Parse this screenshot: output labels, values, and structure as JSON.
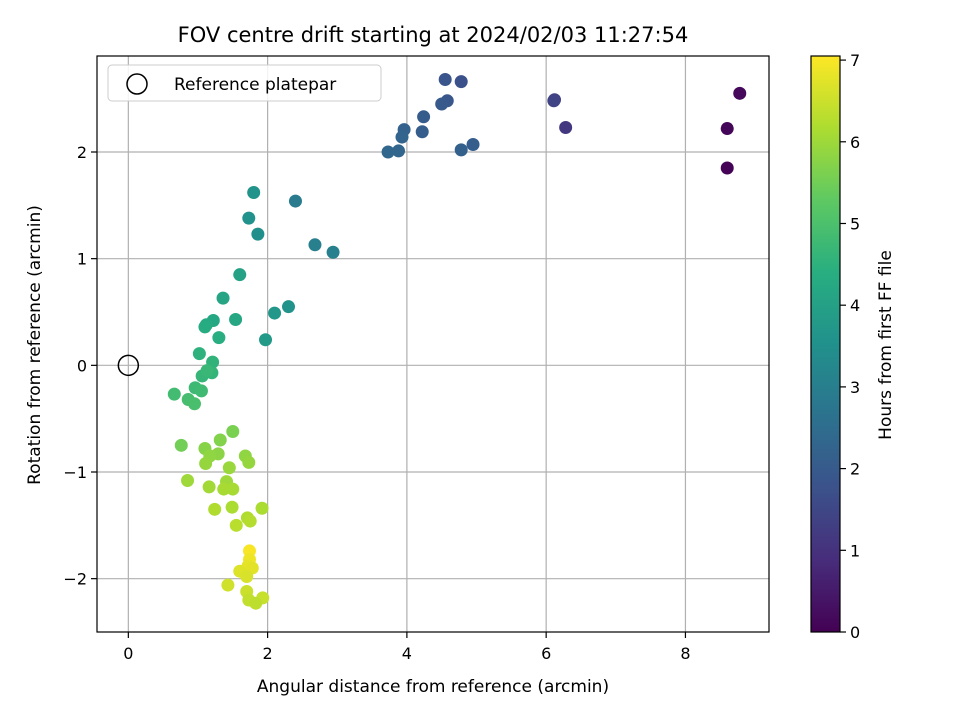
{
  "chart_data": {
    "type": "scatter",
    "title": "FOV centre drift starting at 2024/02/03 11:27:54",
    "xlabel": "Angular distance from reference (arcmin)",
    "ylabel": "Rotation from reference (arcmin)",
    "xlim": [
      -0.45,
      9.2
    ],
    "ylim": [
      -2.5,
      2.9
    ],
    "xticks": [
      0,
      2,
      4,
      6,
      8
    ],
    "yticks": [
      -2,
      -1,
      0,
      1,
      2
    ],
    "xtick_labels": [
      "0",
      "2",
      "4",
      "6",
      "8"
    ],
    "ytick_labels": [
      "−2",
      "−1",
      "0",
      "1",
      "2"
    ],
    "grid": true,
    "legend": {
      "position": "top-left",
      "entries": [
        {
          "label": "Reference platepar",
          "marker": "open-circle"
        }
      ]
    },
    "reference_point": {
      "x": 0,
      "y": 0
    },
    "colorbar": {
      "label": "Hours from first FF file",
      "colormap": "viridis",
      "range": [
        0,
        7.05
      ],
      "ticks": [
        0,
        1,
        2,
        3,
        4,
        5,
        6,
        7
      ],
      "tick_labels": [
        "0",
        "1",
        "2",
        "3",
        "4",
        "5",
        "6",
        "7"
      ]
    },
    "points": [
      {
        "x": 8.6,
        "y": 1.85,
        "c": 0.05
      },
      {
        "x": 8.6,
        "y": 2.22,
        "c": 0.1
      },
      {
        "x": 8.78,
        "y": 2.55,
        "c": 0.15
      },
      {
        "x": 6.28,
        "y": 2.23,
        "c": 1.15
      },
      {
        "x": 6.12,
        "y": 2.49,
        "c": 1.35
      },
      {
        "x": 6.11,
        "y": 2.48,
        "c": 1.4
      },
      {
        "x": 4.78,
        "y": 2.66,
        "c": 1.75
      },
      {
        "x": 4.55,
        "y": 2.68,
        "c": 1.85
      },
      {
        "x": 4.58,
        "y": 2.48,
        "c": 1.9
      },
      {
        "x": 4.5,
        "y": 2.45,
        "c": 1.95
      },
      {
        "x": 4.24,
        "y": 2.33,
        "c": 2.05
      },
      {
        "x": 4.22,
        "y": 2.19,
        "c": 2.1
      },
      {
        "x": 3.96,
        "y": 2.21,
        "c": 2.2
      },
      {
        "x": 3.93,
        "y": 2.14,
        "c": 2.25
      },
      {
        "x": 3.88,
        "y": 2.01,
        "c": 2.3
      },
      {
        "x": 3.73,
        "y": 2.0,
        "c": 2.35
      },
      {
        "x": 4.78,
        "y": 2.02,
        "c": 2.15
      },
      {
        "x": 4.95,
        "y": 2.07,
        "c": 2.1
      },
      {
        "x": 2.4,
        "y": 1.54,
        "c": 2.9
      },
      {
        "x": 2.68,
        "y": 1.13,
        "c": 3.0
      },
      {
        "x": 2.94,
        "y": 1.06,
        "c": 3.05
      },
      {
        "x": 1.8,
        "y": 1.62,
        "c": 3.6
      },
      {
        "x": 1.73,
        "y": 1.38,
        "c": 3.55
      },
      {
        "x": 1.86,
        "y": 1.23,
        "c": 3.5
      },
      {
        "x": 2.3,
        "y": 0.55,
        "c": 3.6
      },
      {
        "x": 2.1,
        "y": 0.49,
        "c": 3.7
      },
      {
        "x": 1.97,
        "y": 0.24,
        "c": 3.8
      },
      {
        "x": 1.6,
        "y": 0.85,
        "c": 4.0
      },
      {
        "x": 1.36,
        "y": 0.63,
        "c": 4.1
      },
      {
        "x": 1.54,
        "y": 0.43,
        "c": 4.15
      },
      {
        "x": 1.22,
        "y": 0.42,
        "c": 4.2
      },
      {
        "x": 1.12,
        "y": 0.38,
        "c": 4.25
      },
      {
        "x": 1.1,
        "y": 0.36,
        "c": 4.3
      },
      {
        "x": 1.3,
        "y": 0.26,
        "c": 4.4
      },
      {
        "x": 1.02,
        "y": 0.11,
        "c": 4.5
      },
      {
        "x": 1.21,
        "y": 0.03,
        "c": 4.55
      },
      {
        "x": 1.2,
        "y": -0.07,
        "c": 4.6
      },
      {
        "x": 1.06,
        "y": -0.1,
        "c": 4.65
      },
      {
        "x": 1.13,
        "y": -0.05,
        "c": 4.7
      },
      {
        "x": 0.96,
        "y": -0.21,
        "c": 4.75
      },
      {
        "x": 1.05,
        "y": -0.24,
        "c": 4.8
      },
      {
        "x": 0.66,
        "y": -0.27,
        "c": 4.85
      },
      {
        "x": 0.86,
        "y": -0.32,
        "c": 4.9
      },
      {
        "x": 0.95,
        "y": -0.36,
        "c": 4.95
      },
      {
        "x": 0.76,
        "y": -0.75,
        "c": 5.5
      },
      {
        "x": 1.5,
        "y": -0.62,
        "c": 5.6
      },
      {
        "x": 1.32,
        "y": -0.7,
        "c": 5.7
      },
      {
        "x": 1.1,
        "y": -0.78,
        "c": 5.75
      },
      {
        "x": 1.29,
        "y": -0.83,
        "c": 5.8
      },
      {
        "x": 1.17,
        "y": -0.85,
        "c": 5.85
      },
      {
        "x": 1.11,
        "y": -0.92,
        "c": 5.9
      },
      {
        "x": 1.68,
        "y": -0.85,
        "c": 5.85
      },
      {
        "x": 1.73,
        "y": -0.91,
        "c": 5.9
      },
      {
        "x": 1.45,
        "y": -0.96,
        "c": 5.95
      },
      {
        "x": 0.85,
        "y": -1.08,
        "c": 6.0
      },
      {
        "x": 1.41,
        "y": -1.09,
        "c": 6.0
      },
      {
        "x": 1.16,
        "y": -1.14,
        "c": 6.05
      },
      {
        "x": 1.37,
        "y": -1.16,
        "c": 6.1
      },
      {
        "x": 1.5,
        "y": -1.16,
        "c": 6.1
      },
      {
        "x": 1.92,
        "y": -1.34,
        "c": 6.15
      },
      {
        "x": 1.49,
        "y": -1.33,
        "c": 6.15
      },
      {
        "x": 1.24,
        "y": -1.35,
        "c": 6.2
      },
      {
        "x": 1.71,
        "y": -1.43,
        "c": 6.2
      },
      {
        "x": 1.75,
        "y": -1.46,
        "c": 6.25
      },
      {
        "x": 1.55,
        "y": -1.5,
        "c": 6.3
      },
      {
        "x": 1.74,
        "y": -1.74,
        "c": 7.0
      },
      {
        "x": 1.74,
        "y": -1.82,
        "c": 6.9
      },
      {
        "x": 1.72,
        "y": -1.88,
        "c": 6.8
      },
      {
        "x": 1.6,
        "y": -1.93,
        "c": 6.7
      },
      {
        "x": 1.78,
        "y": -1.9,
        "c": 6.75
      },
      {
        "x": 1.7,
        "y": -1.98,
        "c": 6.65
      },
      {
        "x": 1.43,
        "y": -2.06,
        "c": 6.55
      },
      {
        "x": 1.7,
        "y": -2.12,
        "c": 6.5
      },
      {
        "x": 1.93,
        "y": -2.18,
        "c": 6.45
      },
      {
        "x": 1.73,
        "y": -2.2,
        "c": 6.4
      },
      {
        "x": 1.83,
        "y": -2.23,
        "c": 6.35
      }
    ]
  }
}
